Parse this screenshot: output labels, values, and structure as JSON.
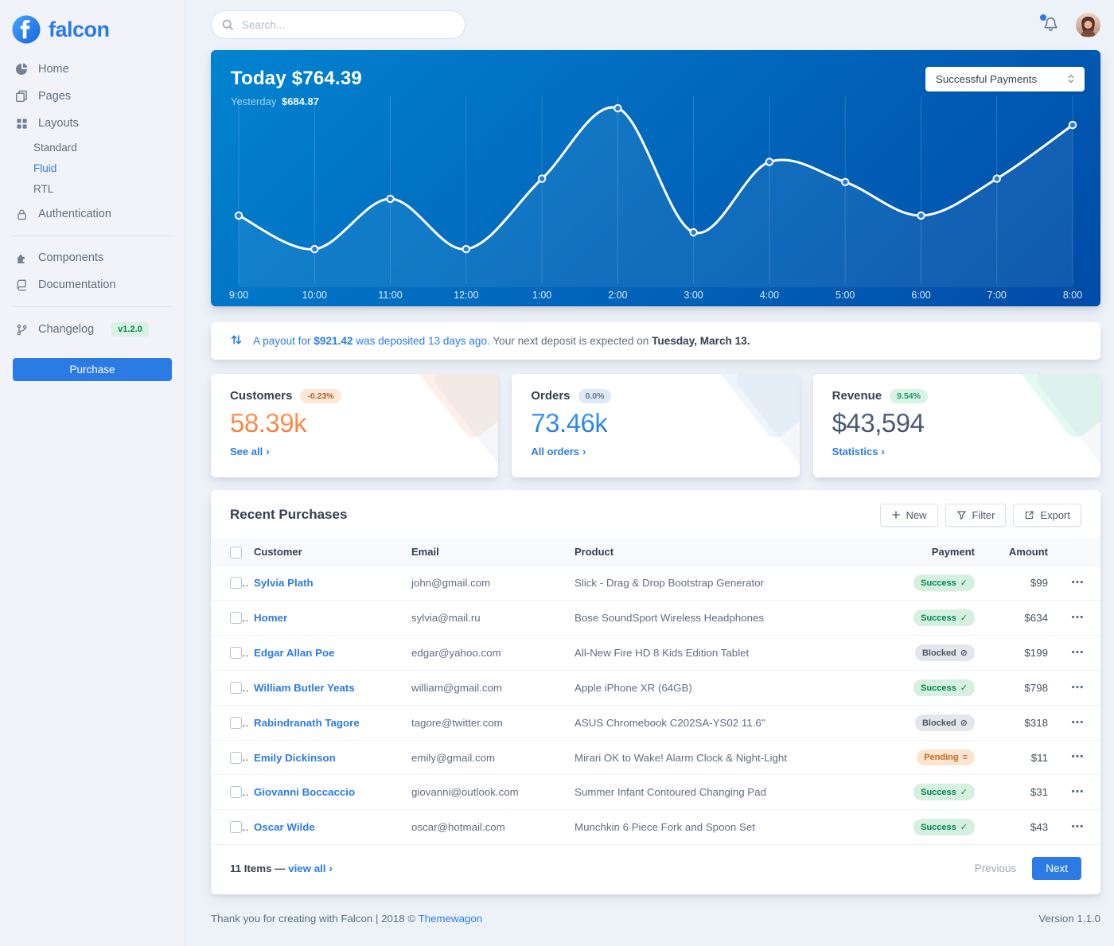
{
  "brand": {
    "name": "falcon"
  },
  "topbar": {
    "search_placeholder": "Search..."
  },
  "sidebar": {
    "home": "Home",
    "pages": "Pages",
    "layouts": "Layouts",
    "layouts_children": {
      "standard": "Standard",
      "fluid": "Fluid",
      "rtl": "RTL"
    },
    "authentication": "Authentication",
    "components": "Components",
    "documentation": "Documentation",
    "changelog": "Changelog",
    "changelog_badge": "v1.2.0",
    "purchase": "Purchase"
  },
  "chart_card": {
    "today_label": "Today",
    "today_value": "$764.39",
    "yesterday_label": "Yesterday",
    "yesterday_value": "$684.87",
    "select_value": "Successful Payments"
  },
  "chart_data": {
    "type": "line",
    "title": "Successful Payments — Today $764.39",
    "x": [
      "9:00",
      "10:00",
      "11:00",
      "12:00",
      "1:00",
      "2:00",
      "3:00",
      "4:00",
      "5:00",
      "6:00",
      "7:00",
      "8:00"
    ],
    "series": [
      {
        "name": "Successful Payments",
        "values": [
          95,
          45,
          120,
          45,
          150,
          255,
          70,
          175,
          145,
          95,
          150,
          230
        ]
      }
    ],
    "ylim": [
      0,
      280
    ],
    "grid": "vertical-only",
    "legend": "none",
    "line_color": "#ffffff",
    "background_gradient": [
      "#0183d0",
      "#014ba7"
    ]
  },
  "payout_notice": {
    "part1": "A payout for",
    "amount": "$921.42",
    "part2": "was deposited 13 days ago.",
    "part3": "Your next deposit is expected on",
    "date": "Tuesday, March 13."
  },
  "stats": {
    "customers": {
      "title": "Customers",
      "badge": "-0.23%",
      "value": "58.39k",
      "link": "See all",
      "accent": "#f5803e"
    },
    "orders": {
      "title": "Orders",
      "badge": "0.0%",
      "value": "73.46k",
      "link": "All orders",
      "accent": "#2c7be5"
    },
    "revenue": {
      "title": "Revenue",
      "badge": "9.54%",
      "value": "$43,594",
      "link": "Statistics",
      "accent": "#00d27a"
    }
  },
  "purchases": {
    "title": "Recent Purchases",
    "buttons": {
      "new": "New",
      "filter": "Filter",
      "export": "Export"
    },
    "columns": {
      "customer": "Customer",
      "email": "Email",
      "product": "Product",
      "payment": "Payment",
      "amount": "Amount"
    },
    "rows": [
      {
        "customer": "Sylvia Plath",
        "email": "john@gmail.com",
        "product": "Slick - Drag & Drop Bootstrap Generator",
        "payment": "Success",
        "amount": "$99"
      },
      {
        "customer": "Homer",
        "email": "sylvia@mail.ru",
        "product": "Bose SoundSport Wireless Headphones",
        "payment": "Success",
        "amount": "$634"
      },
      {
        "customer": "Edgar Allan Poe",
        "email": "edgar@yahoo.com",
        "product": "All-New Fire HD 8 Kids Edition Tablet",
        "payment": "Blocked",
        "amount": "$199"
      },
      {
        "customer": "William Butler Yeats",
        "email": "william@gmail.com",
        "product": "Apple iPhone XR (64GB)",
        "payment": "Success",
        "amount": "$798"
      },
      {
        "customer": "Rabindranath Tagore",
        "email": "tagore@twitter.com",
        "product": "ASUS Chromebook C202SA-YS02 11.6\"",
        "payment": "Blocked",
        "amount": "$318"
      },
      {
        "customer": "Emily Dickinson",
        "email": "emily@gmail.com",
        "product": "Mirari OK to Wake! Alarm Clock & Night-Light",
        "payment": "Pending",
        "amount": "$11"
      },
      {
        "customer": "Giovanni Boccaccio",
        "email": "giovanni@outlook.com",
        "product": "Summer Infant Contoured Changing Pad",
        "payment": "Success",
        "amount": "$31"
      },
      {
        "customer": "Oscar Wilde",
        "email": "oscar@hotmail.com",
        "product": "Munchkin 6 Piece Fork and Spoon Set",
        "payment": "Success",
        "amount": "$43"
      }
    ],
    "footer": {
      "items_text": "11 Items —",
      "view_all": "view all",
      "previous": "Previous",
      "next": "Next"
    }
  },
  "page_footer": {
    "thanks": "Thank you for creating with Falcon | 2018 ©",
    "link": "Themewagon",
    "version": "Version 1.1.0"
  },
  "icons": {
    "chevron_right": "›",
    "check": "✓",
    "ban": "⊘",
    "stream": "≡",
    "ellipsis": "⋯"
  },
  "colors": {
    "primary": "#2c7be5",
    "success": "#00864e",
    "warning_text": "#b35f2b",
    "customers_accent": "#f5803e",
    "orders_accent": "#2c7be5",
    "revenue_accent": "#00d27a",
    "body_bg": "#edf2f9"
  }
}
